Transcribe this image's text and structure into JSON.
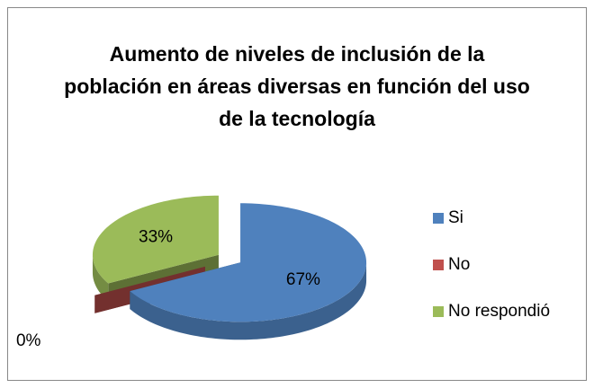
{
  "chart_data": {
    "type": "pie",
    "title": "Aumento de niveles de inclusión de la población en áreas diversas en función del uso de la tecnología",
    "categories": [
      "Si",
      "No",
      "No respondió"
    ],
    "values": [
      67,
      0,
      33
    ],
    "value_labels": [
      "67%",
      "0%",
      "33%"
    ],
    "colors": [
      "#4f81bd",
      "#c0504d",
      "#9bbb59"
    ],
    "legend": "right"
  }
}
